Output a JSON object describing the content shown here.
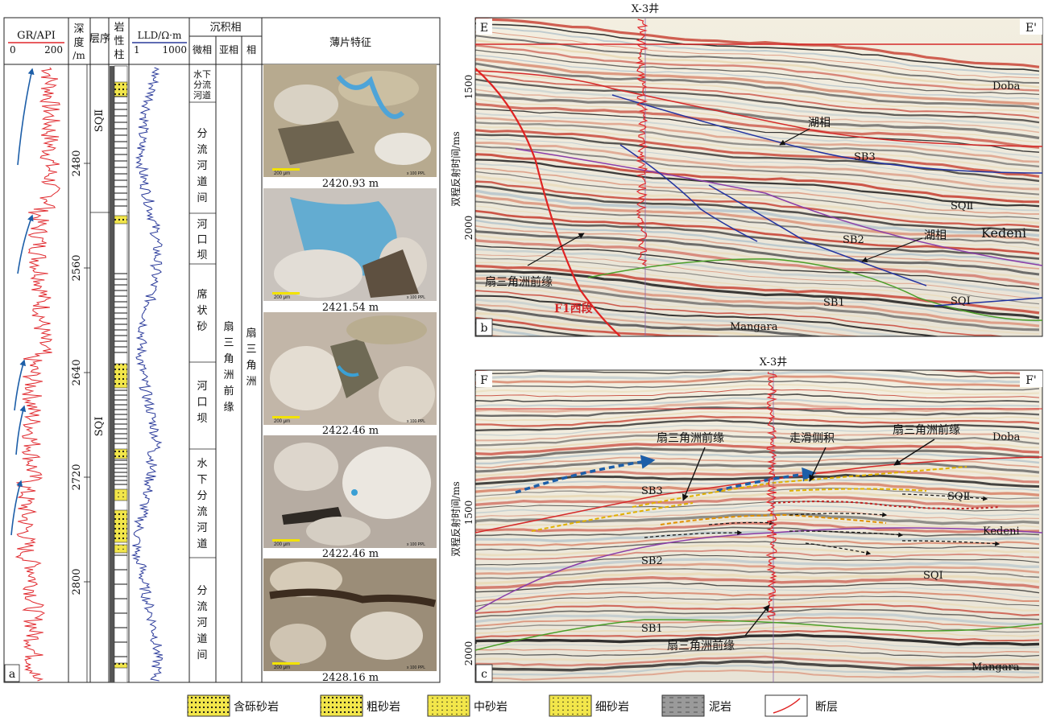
{
  "log_panel": {
    "label": "a",
    "headers": {
      "gr": "GR/API",
      "gr_min": "0",
      "gr_max": "200",
      "depth": [
        "深",
        "度",
        "/m"
      ],
      "sequence": "层序",
      "lithology": [
        "岩",
        "性",
        "柱"
      ],
      "lld": "LLD/Ω·m",
      "lld_min": "1",
      "lld_max": "1000",
      "facies": "沉积相",
      "microfacies": "微相",
      "subfacies": "亚相",
      "facies_col": "相",
      "thin_section": "薄片特征"
    },
    "depth_ticks": [
      "2480",
      "2560",
      "2640",
      "2720",
      "2800"
    ],
    "sequences": [
      "SQⅡ",
      "SQⅠ"
    ],
    "microfacies": [
      [
        "水下",
        "分流",
        "河道"
      ],
      [
        "分",
        "流",
        "河",
        "道",
        "间"
      ],
      [
        "河",
        "口",
        "坝"
      ],
      [
        "席",
        "状",
        "砂"
      ],
      [
        "河",
        "口",
        "坝"
      ],
      [
        "水",
        "下",
        "分",
        "流",
        "河",
        "道"
      ],
      [
        "分",
        "流",
        "河",
        "道",
        "间"
      ]
    ],
    "subfacies": [
      "扇",
      "三",
      "角",
      "洲",
      "前",
      "缘"
    ],
    "facies": [
      "扇",
      "三",
      "角",
      "洲"
    ],
    "photos": [
      "2420.93 m",
      "2421.54 m",
      "2422.46 m",
      "2422.46 m",
      "2428.16 m"
    ],
    "photo_scale": "200 μm",
    "photo_mag": "x 100 PPL"
  },
  "seismic_b": {
    "label": "b",
    "well": "X-3井",
    "left_end": "E",
    "right_end": "E'",
    "ylabel": "双程反射时间/ms",
    "yticks": [
      "1500",
      "2000"
    ],
    "annotations": {
      "lake1": "湖相",
      "lake2": "湖相",
      "sb3": "SB3",
      "sb2": "SB2",
      "sb1": "SB1",
      "sq2": "SQⅡ",
      "sq1": "SQⅠ",
      "doba": "Doba",
      "kedeni": "Kedeni",
      "mangara": "Mangara",
      "fan_front": "扇三角洲前缘",
      "fault": "F1西段"
    }
  },
  "seismic_c": {
    "label": "c",
    "well": "X-3井",
    "left_end": "F",
    "right_end": "F'",
    "ylabel": "双程反射时间/ms",
    "yticks": [
      "1500",
      "2000"
    ],
    "annotations": {
      "fan_front_1": "扇三角洲前缘",
      "strike_slip": "走滑侧积",
      "fan_front_2": "扇三角洲前缘",
      "fan_front_3": "扇三角洲前缘",
      "sb3": "SB3",
      "sb2": "SB2",
      "sb1": "SB1",
      "sq2": "SQⅡ",
      "sq1": "SQⅠ",
      "doba": "Doba",
      "kedeni": "Kedeni",
      "mangara": "Mangara"
    }
  },
  "legend": [
    "含砾砂岩",
    "粗砂岩",
    "中砂岩",
    "细砂岩",
    "泥岩",
    "断层"
  ],
  "colors": {
    "gr": "#e0262b",
    "lld": "#2a3a9a",
    "sand": "#f2e64a",
    "arrow": "#1c5ea8"
  }
}
